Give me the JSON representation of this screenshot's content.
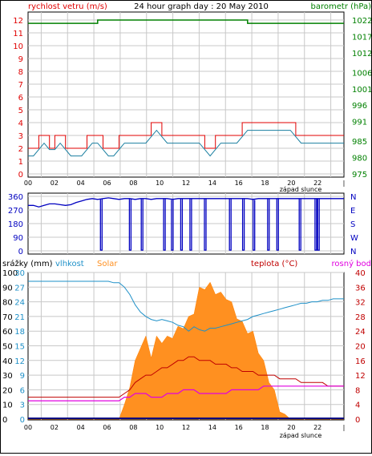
{
  "chart_data": [
    {
      "id": "wind",
      "type": "line",
      "title": "24 hour graph day : 20 May 2010",
      "left_axis_label": "rychlost vetru (m/s)",
      "right_axis_label": "barometr (hPa)",
      "left_ticks": [
        "0",
        "1",
        "2",
        "3",
        "4",
        "5",
        "6",
        "7",
        "8",
        "9",
        "10",
        "11",
        "12"
      ],
      "right_ticks": [
        "975",
        "980",
        "985",
        "991",
        "996",
        "1001",
        "1006",
        "1012",
        "1017",
        "1022"
      ],
      "ylim_left": [
        0,
        12
      ],
      "ylim_right": [
        975,
        1022
      ],
      "x_ticks": [
        "00",
        "02",
        "04",
        "06",
        "08",
        "10",
        "12",
        "14",
        "16",
        "18",
        "20",
        "22"
      ],
      "x_note": "západ slunce",
      "series": [
        {
          "name": "rychlost vetru (m/s)",
          "color": "#e00000",
          "values": [
            2,
            2,
            3,
            3,
            2,
            3,
            3,
            2,
            2,
            2,
            2,
            3,
            3,
            3,
            2,
            2,
            2,
            3,
            3,
            3,
            3,
            3,
            3,
            4,
            4,
            3,
            3,
            3,
            3,
            3,
            3,
            3,
            3,
            2,
            2,
            3,
            3,
            3,
            3,
            3,
            4,
            4,
            4,
            4,
            4,
            4,
            4,
            4,
            4,
            4,
            3,
            3,
            3,
            3,
            3,
            3,
            3,
            3,
            3,
            3
          ]
        },
        {
          "name": "barometr (hPa)",
          "color": "#008000",
          "values": [
            1021,
            1021,
            1021,
            1021,
            1021,
            1021,
            1021,
            1021,
            1021,
            1021,
            1021,
            1021,
            1021,
            1022,
            1022,
            1022,
            1022,
            1022,
            1022,
            1022,
            1022,
            1022,
            1022,
            1022,
            1022,
            1022,
            1022,
            1022,
            1022,
            1022,
            1022,
            1022,
            1022,
            1022,
            1022,
            1022,
            1022,
            1022,
            1022,
            1022,
            1022,
            1021,
            1021,
            1021,
            1021,
            1021,
            1021,
            1021,
            1021,
            1021,
            1021,
            1021,
            1021,
            1021,
            1021,
            1021,
            1021,
            1021,
            1021,
            1021
          ]
        }
      ]
    },
    {
      "id": "direction",
      "type": "line",
      "left_ticks": [
        "0",
        "90",
        "180",
        "270",
        "360"
      ],
      "right_ticks": [
        "N",
        "W",
        "S",
        "E",
        "N"
      ],
      "ylim": [
        0,
        360
      ],
      "series": [
        {
          "name": "wind direction",
          "color": "#0000c0",
          "values": [
            300,
            300,
            290,
            300,
            310,
            310,
            305,
            300,
            305,
            320,
            330,
            340,
            345,
            340,
            345,
            350,
            345,
            340,
            345,
            345,
            340,
            345,
            345,
            340,
            345,
            345,
            345,
            340,
            345,
            345,
            345,
            345,
            345,
            345,
            345,
            345,
            345,
            345,
            345,
            345,
            345,
            345,
            340,
            345,
            345,
            345,
            345,
            345,
            345,
            345,
            345,
            345,
            345,
            345,
            345,
            345,
            345,
            345,
            345,
            345
          ]
        }
      ],
      "dropouts_hours": [
        5.5,
        7.7,
        8.6,
        10.3,
        10.9,
        11.6,
        12.3,
        13.4,
        15.3,
        16.3,
        17.1,
        18.2,
        18.9,
        20.6,
        21.8,
        22.0
      ]
    },
    {
      "id": "weather",
      "type": "area",
      "label_rain": "srážky (mm)",
      "label_humidity": "vlhkost",
      "label_solar": "Solar",
      "label_temp": "teplota (°C)",
      "label_dew": "rosný bod",
      "col1_ticks": [
        "0",
        "10",
        "20",
        "30",
        "40",
        "50",
        "60",
        "70",
        "80",
        "90",
        "100"
      ],
      "col2_ticks": [
        "0",
        "3",
        "6",
        "9",
        "12",
        "15",
        "18",
        "21",
        "24",
        "27",
        "30"
      ],
      "right_ticks": [
        "0",
        "4",
        "8",
        "12",
        "16",
        "20",
        "24",
        "28",
        "32",
        "36",
        "40"
      ],
      "ylim_right": [
        0,
        40
      ],
      "ylim_solar": [
        0,
        30
      ],
      "series": [
        {
          "name": "vlhkost",
          "color": "#1e90c8",
          "values": [
            94,
            94,
            94,
            94,
            94,
            94,
            94,
            94,
            94,
            94,
            94,
            94,
            94,
            94,
            94,
            94,
            93,
            93,
            90,
            85,
            78,
            73,
            70,
            68,
            67,
            68,
            67,
            66,
            64,
            63,
            60,
            63,
            61,
            60,
            62,
            62,
            63,
            64,
            65,
            66,
            67,
            68,
            70,
            71,
            72,
            73,
            74,
            75,
            76,
            77,
            78,
            79,
            79,
            80,
            80,
            81,
            81,
            82,
            82,
            82
          ]
        },
        {
          "name": "teplota (°C)",
          "color": "#c00000",
          "values": [
            6,
            6,
            6,
            6,
            6,
            6,
            6,
            6,
            6,
            6,
            6,
            6,
            6,
            6,
            6,
            6,
            6,
            6,
            7,
            8,
            10,
            11,
            12,
            12,
            13,
            14,
            14,
            15,
            16,
            16,
            17,
            17,
            16,
            16,
            16,
            15,
            15,
            15,
            14,
            14,
            13,
            13,
            13,
            12,
            12,
            12,
            12,
            11,
            11,
            11,
            11,
            10,
            10,
            10,
            10,
            10,
            9,
            9,
            9,
            9
          ]
        },
        {
          "name": "rosný bod",
          "color": "#e000e0",
          "values": [
            5,
            5,
            5,
            5,
            5,
            5,
            5,
            5,
            5,
            5,
            5,
            5,
            5,
            5,
            5,
            5,
            5,
            5,
            6,
            6,
            7,
            7,
            7,
            6,
            6,
            6,
            7,
            7,
            7,
            8,
            8,
            8,
            7,
            7,
            7,
            7,
            7,
            7,
            8,
            8,
            8,
            8,
            8,
            8,
            9,
            9,
            9,
            9,
            9,
            9,
            9,
            9,
            9,
            9,
            9,
            9,
            9,
            9,
            9,
            9
          ]
        },
        {
          "name": "Solar",
          "color": "#ff9020",
          "values": [
            0,
            0,
            0,
            0,
            0,
            0,
            0,
            0,
            0,
            0,
            0,
            0,
            0,
            0,
            0,
            0,
            0,
            1,
            3,
            8,
            12,
            16,
            17,
            14,
            17,
            17,
            17,
            18,
            19,
            20,
            21,
            23,
            27,
            28,
            28,
            27,
            26,
            26,
            24,
            22,
            20,
            19,
            18,
            15,
            12,
            9,
            6,
            3,
            1,
            0,
            0,
            0,
            0,
            0,
            0,
            0,
            0,
            0,
            0,
            0
          ]
        },
        {
          "name": "srážky (mm)",
          "color": "#000080",
          "values": [
            0,
            0,
            0,
            0,
            0,
            0,
            0,
            0,
            0,
            0,
            0,
            0,
            0,
            0,
            0,
            0,
            0,
            0,
            0,
            0,
            0,
            0,
            0,
            0,
            0,
            0,
            0,
            0,
            0,
            0,
            0,
            0,
            0,
            0,
            0,
            0,
            0,
            0,
            0,
            0,
            0,
            0,
            0,
            0,
            0,
            0,
            0,
            0,
            0,
            0,
            0,
            0,
            0,
            0,
            0,
            0,
            0,
            0,
            0,
            0
          ]
        }
      ]
    }
  ]
}
